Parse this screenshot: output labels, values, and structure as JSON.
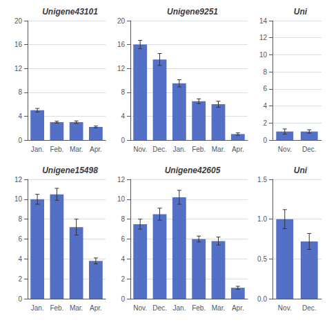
{
  "chart_data": [
    {
      "type": "bar",
      "title": "Unigene43101",
      "categories": [
        "Jan.",
        "Feb.",
        "Mar.",
        "Apr."
      ],
      "values": [
        5.0,
        3.0,
        3.0,
        2.2
      ],
      "errors": [
        0.3,
        0.15,
        0.2,
        0.15
      ],
      "ylim": [
        0,
        20
      ],
      "yticks": [
        0,
        4,
        8,
        12,
        16,
        20
      ],
      "grid": true
    },
    {
      "type": "bar",
      "title": "Unigene9251",
      "categories": [
        "Nov.",
        "Dec.",
        "Jan.",
        "Feb.",
        "Mar.",
        "Apr."
      ],
      "values": [
        16.0,
        13.5,
        9.5,
        6.5,
        6.0,
        1.0
      ],
      "errors": [
        0.7,
        1.0,
        0.6,
        0.4,
        0.5,
        0.2
      ],
      "ylim": [
        0,
        20
      ],
      "yticks": [
        0,
        4,
        8,
        12,
        16,
        20
      ],
      "grid": true
    },
    {
      "type": "bar",
      "title": "Uni",
      "categories": [
        "Nov.",
        "Dec."
      ],
      "values": [
        1.0,
        1.0
      ],
      "errors": [
        0.3,
        0.2
      ],
      "ylim": [
        0,
        14
      ],
      "yticks": [
        0,
        2,
        4,
        6,
        8,
        10,
        12,
        14
      ],
      "grid": true
    },
    {
      "type": "bar",
      "title": "Unigene15498",
      "categories": [
        "Jan.",
        "Feb.",
        "Mar.",
        "Apr."
      ],
      "values": [
        10.0,
        10.5,
        7.2,
        3.8
      ],
      "errors": [
        0.5,
        0.6,
        0.8,
        0.3
      ],
      "ylim": [
        0,
        12
      ],
      "yticks": [
        0,
        2,
        4,
        6,
        8,
        10,
        12
      ],
      "grid": true
    },
    {
      "type": "bar",
      "title": "Unigene42605",
      "categories": [
        "Nov.",
        "Dec.",
        "Jan.",
        "Feb.",
        "Mar.",
        "Apr."
      ],
      "values": [
        7.5,
        8.5,
        10.2,
        6.0,
        5.8,
        1.1
      ],
      "errors": [
        0.5,
        0.6,
        0.7,
        0.3,
        0.4,
        0.15
      ],
      "ylim": [
        0,
        12
      ],
      "yticks": [
        0,
        2,
        4,
        6,
        8,
        10,
        12
      ],
      "grid": true
    },
    {
      "type": "bar",
      "title": "Uni",
      "categories": [
        "Nov.",
        "Dec."
      ],
      "values": [
        1.0,
        0.72
      ],
      "errors": [
        0.12,
        0.1
      ],
      "ylim": [
        0,
        1.5
      ],
      "yticks": [
        {
          "value": 0,
          "label": "0.0"
        },
        0.5,
        {
          "value": 1.0,
          "label": "1.0"
        },
        1.5
      ],
      "grid": true
    }
  ]
}
